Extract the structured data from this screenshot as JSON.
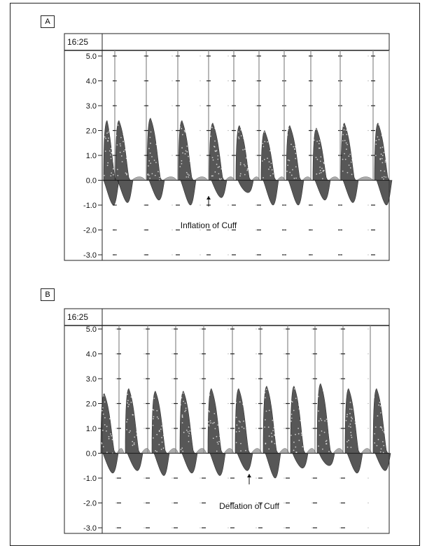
{
  "figure": {
    "panels": [
      {
        "label": "A",
        "time": "16:25",
        "annotation": "Inflation of Cuff"
      },
      {
        "label": "B",
        "time": "16:25",
        "annotation": "Deflation of Cuff"
      }
    ]
  },
  "chart_data": [
    {
      "type": "area",
      "panel": "A",
      "title": "",
      "xlabel": "",
      "ylabel": "",
      "time_label": "16:25",
      "ylim": [
        -3.0,
        5.0
      ],
      "yticks": [
        "5.0",
        "4.0",
        "3.0",
        "2.0",
        "1.0",
        "0.0",
        "-1.0",
        "-2.0",
        "-3.0"
      ],
      "series": [
        {
          "beat_peaks": [
            2.4,
            2.4,
            2.5,
            2.4,
            2.3,
            2.2,
            2.0,
            2.2,
            2.1,
            2.3,
            2.3
          ]
        },
        {
          "beat_troughs": [
            -1.0,
            -0.9,
            -0.8,
            -1.0,
            -0.7,
            -0.5,
            -1.0,
            -1.0,
            -0.8,
            -0.9,
            -1.0
          ]
        }
      ],
      "annotations": [
        {
          "text": "Inflation of Cuff",
          "beat_index": 3
        }
      ]
    },
    {
      "type": "area",
      "panel": "B",
      "title": "",
      "xlabel": "",
      "ylabel": "",
      "time_label": "16:25",
      "ylim": [
        -3.0,
        5.0
      ],
      "yticks": [
        "5.0",
        "4.0",
        "3.0",
        "2.0",
        "1.0",
        "0.0",
        "-1.0",
        "-2.0",
        "-3.0"
      ],
      "series": [
        {
          "beat_peaks": [
            2.4,
            2.6,
            2.5,
            2.5,
            2.6,
            2.6,
            2.7,
            2.7,
            2.8,
            2.6,
            2.6,
            2.7
          ]
        },
        {
          "beat_troughs": [
            -0.8,
            -0.7,
            -0.9,
            -0.8,
            -0.9,
            -0.7,
            -1.0,
            -0.6,
            -0.5,
            -0.8,
            -0.7,
            -0.8
          ]
        }
      ],
      "annotations": [
        {
          "text": "Deflation of Cuff",
          "beat_index": 6
        }
      ]
    }
  ]
}
